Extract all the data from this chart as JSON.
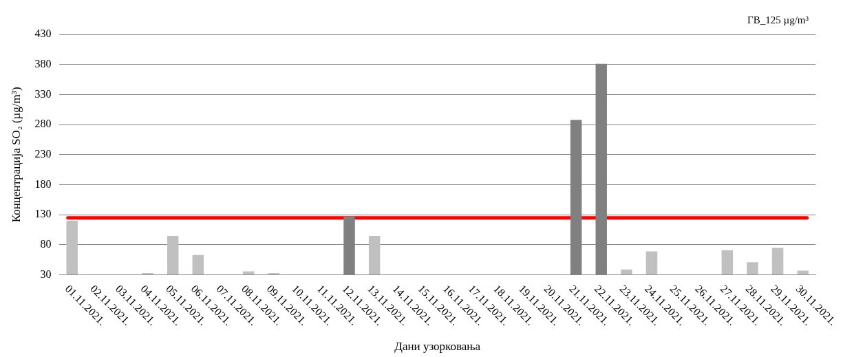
{
  "chart_data": {
    "type": "bar",
    "xlabel": "Дани узорковања",
    "ylabel": "Концентрација SO₂ (µg/m³)",
    "categories": [
      "01.11.2021.",
      "02.11.2021.",
      "03.11.2021.",
      "04.11.2021.",
      "05.11.2021.",
      "06.11.2021.",
      "07.11.2021.",
      "08.11.2021.",
      "09.11.2021.",
      "10.11.2021.",
      "11.11.2021.",
      "12.11.2021.",
      "13.11.2021.",
      "14.11.2021.",
      "15.11.2021.",
      "16.11.2021.",
      "17.11.2021.",
      "18.11.2021.",
      "19.11.2021.",
      "20.11.2021.",
      "21.11.2021.",
      "22.11.2021.",
      "23.11.2021.",
      "24.11.2021.",
      "25.11.2021.",
      "26.11.2021.",
      "27.11.2021.",
      "28.11.2021.",
      "29.11.2021.",
      "30.11.2021."
    ],
    "values": [
      120,
      null,
      null,
      33,
      95,
      63,
      null,
      36,
      33,
      null,
      null,
      127,
      95,
      null,
      null,
      null,
      null,
      null,
      null,
      null,
      288,
      381,
      39,
      69,
      null,
      null,
      71,
      51,
      75,
      37
    ],
    "colors": [
      "#c0c0c0",
      "#c0c0c0",
      "#c0c0c0",
      "#c0c0c0",
      "#c0c0c0",
      "#c0c0c0",
      "#c0c0c0",
      "#c0c0c0",
      "#c0c0c0",
      "#c0c0c0",
      "#c0c0c0",
      "#808080",
      "#c0c0c0",
      "#c0c0c0",
      "#c0c0c0",
      "#c0c0c0",
      "#c0c0c0",
      "#c0c0c0",
      "#c0c0c0",
      "#c0c0c0",
      "#808080",
      "#808080",
      "#c0c0c0",
      "#c0c0c0",
      "#c0c0c0",
      "#c0c0c0",
      "#c0c0c0",
      "#c0c0c0",
      "#c0c0c0",
      "#c0c0c0"
    ],
    "ylim": [
      30,
      430
    ],
    "yticks": [
      30,
      80,
      130,
      180,
      230,
      280,
      330,
      380,
      430
    ],
    "grid": "y",
    "legend": false,
    "annotations": [
      "ГВ_125 µg/m³"
    ],
    "ref_lines": [
      {
        "axis": "y",
        "value": 125,
        "color": "#ff0000"
      }
    ]
  }
}
